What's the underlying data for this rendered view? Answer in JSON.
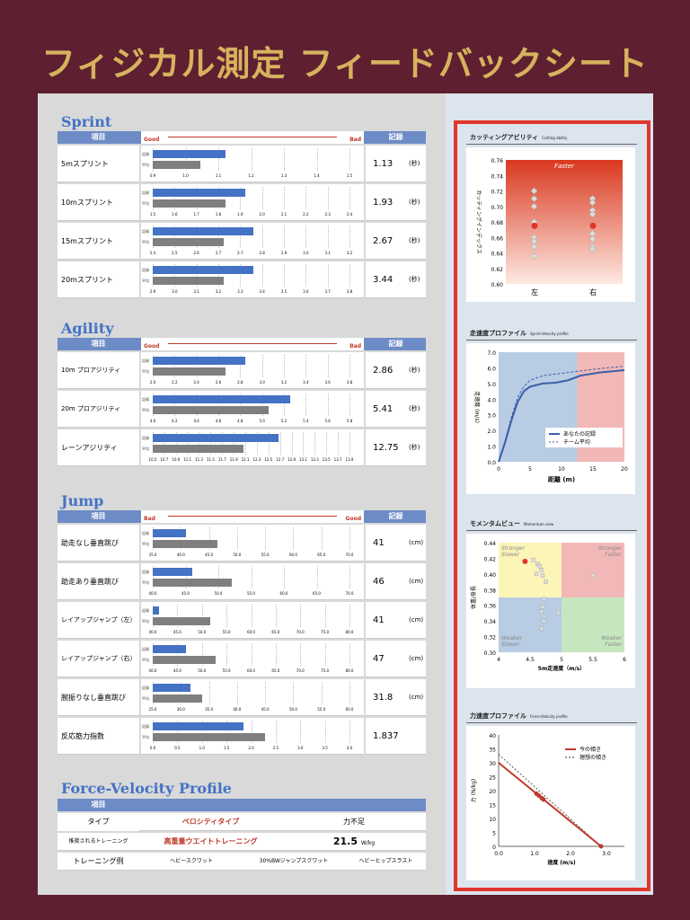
{
  "title": "フィジカル測定 フィードバックシート",
  "colors": {
    "background": "#5e1f30",
    "title": "#d6b25e",
    "blue_bar": "#4472c4",
    "gray_bar": "#7f7f7f",
    "header": "#6d8cc7",
    "accent_red": "#e0362c"
  },
  "legend": {
    "mine": "記録",
    "avg": "平均"
  },
  "sprint": {
    "heading": "Sprint",
    "col_item": "項目",
    "col_rec": "記録",
    "good": "Good",
    "bad": "Bad",
    "rows": [
      {
        "label": "5mスプリント",
        "value": "1.13",
        "unit": "(秒)",
        "ticks": [
          "0.9",
          "1.0",
          "1.1",
          "1.2",
          "1.3",
          "1.4",
          "1.5"
        ],
        "mine": 0.37,
        "avg": 0.24
      },
      {
        "label": "10mスプリント",
        "value": "1.93",
        "unit": "(秒)",
        "ticks": [
          "1.5",
          "1.6",
          "1.7",
          "1.8",
          "1.9",
          "2.0",
          "2.1",
          "2.2",
          "2.3",
          "2.4"
        ],
        "mine": 0.47,
        "avg": 0.37
      },
      {
        "label": "15mスプリント",
        "value": "2.67",
        "unit": "(秒)",
        "ticks": [
          "2.4",
          "2.5",
          "2.6",
          "2.7",
          "2.7",
          "2.8",
          "2.9",
          "3.0",
          "3.1",
          "3.2"
        ],
        "mine": 0.51,
        "avg": 0.36
      },
      {
        "label": "20mスプリント",
        "value": "3.44",
        "unit": "(秒)",
        "ticks": [
          "2.9",
          "3.0",
          "3.1",
          "3.2",
          "3.3",
          "3.4",
          "3.5",
          "3.6",
          "3.7",
          "3.8"
        ],
        "mine": 0.51,
        "avg": 0.36
      }
    ]
  },
  "agility": {
    "heading": "Agility",
    "col_item": "項目",
    "col_rec": "記録",
    "good": "Good",
    "bad": "Bad",
    "rows": [
      {
        "label": "10m プロアジリティ",
        "value": "2.86",
        "unit": "(秒)",
        "ticks": [
          "2.0",
          "2.2",
          "2.4",
          "2.6",
          "2.8",
          "3.0",
          "3.2",
          "3.4",
          "3.6",
          "3.8"
        ],
        "mine": 0.47,
        "avg": 0.37
      },
      {
        "label": "20m プロアジリティ",
        "value": "5.41",
        "unit": "(秒)",
        "ticks": [
          "4.0",
          "4.2",
          "4.4",
          "4.6",
          "4.8",
          "5.0",
          "5.2",
          "5.4",
          "5.6",
          "5.8"
        ],
        "mine": 0.7,
        "avg": 0.59
      },
      {
        "label": "レーンアジリティ",
        "value": "12.75",
        "unit": "(秒)",
        "ticks": [
          "10.5",
          "10.7",
          "10.9",
          "11.1",
          "11.3",
          "11.5",
          "11.7",
          "11.9",
          "12.1",
          "12.3",
          "12.5",
          "12.7",
          "12.9",
          "13.1",
          "13.3",
          "13.5",
          "13.7",
          "13.9"
        ],
        "mine": 0.64,
        "avg": 0.46
      }
    ]
  },
  "jump": {
    "heading": "Jump",
    "col_item": "項目",
    "col_rec": "記録",
    "good": "Good",
    "bad": "Bad",
    "rows": [
      {
        "label": "助走なし垂直跳び",
        "value": "41",
        "unit": "(cm)",
        "ticks": [
          "35.0",
          "40.0",
          "45.0",
          "50.0",
          "55.0",
          "60.0",
          "65.0",
          "70.0"
        ],
        "mine": 0.17,
        "avg": 0.33
      },
      {
        "label": "助走あり垂直跳び",
        "value": "46",
        "unit": "(cm)",
        "ticks": [
          "40.0",
          "45.0",
          "50.0",
          "55.0",
          "60.0",
          "65.0",
          "70.0"
        ],
        "mine": 0.2,
        "avg": 0.4
      },
      {
        "label": "レイアップジャンプ（左）",
        "value": "41",
        "unit": "(cm)",
        "ticks": [
          "40.0",
          "45.0",
          "50.0",
          "55.0",
          "60.0",
          "65.0",
          "70.0",
          "75.0",
          "80.0"
        ],
        "mine": 0.03,
        "avg": 0.29
      },
      {
        "label": "レイアップジャンプ（右）",
        "value": "47",
        "unit": "(cm)",
        "ticks": [
          "40.0",
          "45.0",
          "50.0",
          "55.0",
          "60.0",
          "65.0",
          "70.0",
          "75.0",
          "80.0"
        ],
        "mine": 0.17,
        "avg": 0.32
      },
      {
        "label": "腕振りなし垂直跳び",
        "value": "31.8",
        "unit": "(cm)",
        "ticks": [
          "25.0",
          "30.0",
          "35.0",
          "40.0",
          "45.0",
          "50.0",
          "55.0",
          "60.0"
        ],
        "mine": 0.19,
        "avg": 0.25
      },
      {
        "label": "反応筋力指数",
        "value": "1.837",
        "unit": "",
        "ticks": [
          "0.0",
          "0.5",
          "1.0",
          "1.5",
          "2.0",
          "2.5",
          "3.0",
          "3.5",
          "4.0"
        ],
        "mine": 0.46,
        "avg": 0.57
      }
    ]
  },
  "fv": {
    "heading": "Force-Velocity Profile",
    "col_item": "項目",
    "type_label": "タイプ",
    "type_value": "ベロシティタイプ",
    "type_note": "力不足",
    "rec_label": "推奨されるトレーニング",
    "rec_value": "高重量ウエイトトレーニング",
    "rec_num": "21.5",
    "rec_unit": "W/kg",
    "ex_label": "トレーニング例",
    "examples": [
      "ヘビースクワット",
      "30%BWジャンプスクワット",
      "ヘビーヒップスラスト"
    ]
  },
  "cutting": {
    "title": "カッティングアビリティ",
    "title_en": "Cutting ability",
    "label_faster": "Faster",
    "ylabel": "カッティングインデックス",
    "yticks": [
      "0.76",
      "0.74",
      "0.72",
      "0.70",
      "0.68",
      "0.66",
      "0.64",
      "0.62",
      "0.60"
    ],
    "xcats": [
      "左",
      "右"
    ]
  },
  "sprint_velocity": {
    "title": "走速度プロファイル",
    "title_en": "Sprint-Velocity profile",
    "ylabel": "走速度 (m/s)",
    "xlabel": "距離 (m)",
    "yticks": [
      "7.0",
      "6.0",
      "5.0",
      "4.0",
      "3.0",
      "2.0",
      "1.0",
      "0.0"
    ],
    "xticks": [
      "0",
      "5",
      "10",
      "15",
      "20"
    ],
    "legend_mine": "あなたの記録",
    "legend_avg": "チーム平均"
  },
  "momentum": {
    "title": "モメンタムビュー",
    "title_en": "Momentum view",
    "ylabel": "体重/身長",
    "xlabel": "5m走速度（m/s）",
    "yticks": [
      "0.44",
      "0.42",
      "0.40",
      "0.38",
      "0.36",
      "0.34",
      "0.32",
      "0.30"
    ],
    "xticks": [
      "4",
      "4.5",
      "5",
      "5.5",
      "6"
    ],
    "q1": "Stronger Slower",
    "q2": "Stronger Faster",
    "q3": "Weaker Slower",
    "q4": "Weaker Faster"
  },
  "force_velocity": {
    "title": "力速度プロファイル",
    "title_en": "Force-Velocity profile",
    "ylabel": "力 (N/kg)",
    "xlabel": "速度 (m/s)",
    "yticks": [
      "40",
      "35",
      "30",
      "25",
      "20",
      "15",
      "10",
      "5",
      "0"
    ],
    "xticks": [
      "0.0",
      "1.0",
      "2.0",
      "3.0"
    ],
    "legend_now": "今の傾き",
    "legend_ideal": "理想の傾き"
  }
}
